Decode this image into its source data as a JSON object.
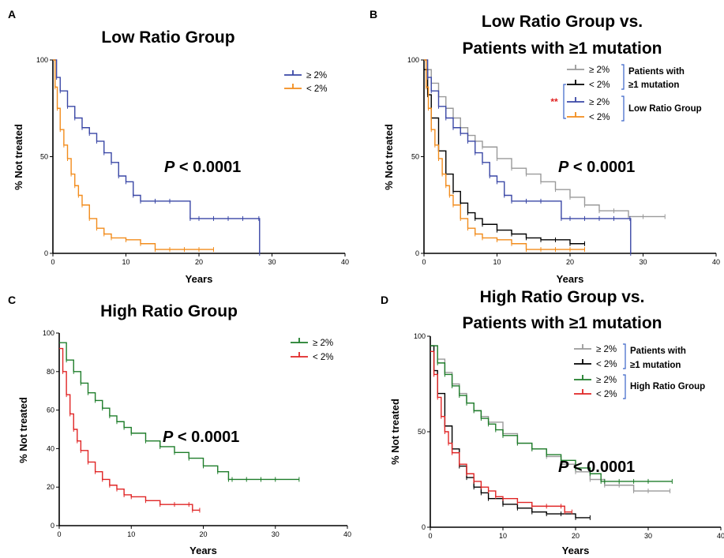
{
  "chart_data": [
    {
      "type": "line",
      "panel": "A",
      "title": [
        "Low Ratio Group"
      ],
      "xlabel": "Years",
      "ylabel": "% Not treated",
      "xlim": [
        0,
        40
      ],
      "ylim": [
        0,
        100
      ],
      "xticks": [
        0,
        10,
        20,
        30,
        40
      ],
      "yticks": [
        0,
        50,
        100
      ],
      "pvalue": {
        "prefix": "P",
        "text": " < 0.0001"
      },
      "legend": [
        {
          "label": "≥ 2%",
          "color": "#3a47a6"
        },
        {
          "label": "< 2%",
          "color": "#f28c1c"
        }
      ],
      "series": [
        {
          "name": "≥ 2%",
          "color": "#3a47a6",
          "x": [
            0,
            0.5,
            1,
            2,
            3,
            4,
            5,
            6,
            7,
            8,
            9,
            10,
            11,
            12,
            14,
            16,
            18.8,
            20,
            22,
            24,
            26,
            28.2,
            28.3
          ],
          "y": [
            100,
            91,
            84,
            76,
            70,
            65,
            62,
            58,
            52,
            47,
            40,
            37,
            30,
            27,
            27,
            27,
            18,
            18,
            18,
            18,
            18,
            18,
            0
          ]
        },
        {
          "name": "< 2%",
          "color": "#f28c1c",
          "x": [
            0,
            0.3,
            0.6,
            1,
            1.5,
            2,
            2.5,
            3,
            3.5,
            4,
            5,
            6,
            7,
            8,
            10,
            12,
            14,
            16,
            18,
            20,
            22
          ],
          "y": [
            100,
            86,
            75,
            64,
            56,
            49,
            41,
            35,
            30,
            25,
            18,
            13,
            10,
            8,
            7,
            5,
            2,
            2,
            2,
            2,
            2
          ]
        }
      ]
    },
    {
      "type": "line",
      "panel": "B",
      "title": [
        "Low Ratio Group vs.",
        "Patients with ≥1 mutation"
      ],
      "xlabel": "Years",
      "ylabel": "% Not treated",
      "xlim": [
        0,
        40
      ],
      "ylim": [
        0,
        100
      ],
      "xticks": [
        0,
        10,
        20,
        30,
        40
      ],
      "yticks": [
        0,
        50,
        100
      ],
      "pvalue": {
        "prefix": "P",
        "text": " < 0.0001"
      },
      "significance": "**",
      "legend": [
        {
          "label": "≥ 2%",
          "color": "#9a9a9a"
        },
        {
          "label": "< 2%",
          "color": "#000000"
        },
        {
          "label": "≥ 2%",
          "color": "#3a47a6"
        },
        {
          "label": "< 2%",
          "color": "#f28c1c"
        }
      ],
      "legend_groups": [
        {
          "lines": [
            "Patients with",
            "≥1 mutation"
          ]
        },
        {
          "lines": [
            "Low Ratio Group"
          ]
        }
      ],
      "series": [
        {
          "name": "≥ 2%",
          "color": "#9a9a9a",
          "x": [
            0,
            1,
            2,
            3,
            4,
            5,
            6,
            7,
            8,
            10,
            12,
            14,
            16,
            18,
            20,
            22,
            24,
            26,
            28,
            30,
            33
          ],
          "y": [
            95,
            88,
            81,
            75,
            70,
            65,
            61,
            58,
            55,
            49,
            44,
            41,
            37,
            33,
            29,
            25,
            22,
            22,
            19,
            19,
            19
          ]
        },
        {
          "name": "< 2%",
          "color": "#000000",
          "x": [
            0,
            0.5,
            1,
            2,
            3,
            4,
            5,
            6,
            7,
            8,
            10,
            12,
            14,
            16,
            18,
            20,
            22
          ],
          "y": [
            95,
            82,
            70,
            53,
            41,
            32,
            26,
            21,
            18,
            15,
            12,
            10,
            8,
            7,
            7,
            5,
            5
          ]
        },
        {
          "name": "≥ 2%",
          "color": "#3a47a6",
          "x": [
            0,
            0.5,
            1,
            2,
            3,
            4,
            5,
            6,
            7,
            8,
            9,
            10,
            11,
            12,
            14,
            16,
            18.8,
            20,
            22,
            24,
            26,
            28.2,
            28.3
          ],
          "y": [
            100,
            91,
            84,
            76,
            70,
            65,
            62,
            58,
            52,
            47,
            40,
            37,
            30,
            27,
            27,
            27,
            18,
            18,
            18,
            18,
            18,
            18,
            0
          ]
        },
        {
          "name": "< 2%",
          "color": "#f28c1c",
          "x": [
            0,
            0.3,
            0.6,
            1,
            1.5,
            2,
            2.5,
            3,
            3.5,
            4,
            5,
            6,
            7,
            8,
            10,
            12,
            14,
            16,
            18,
            20,
            22
          ],
          "y": [
            100,
            86,
            75,
            64,
            56,
            49,
            41,
            35,
            30,
            25,
            18,
            13,
            10,
            8,
            7,
            5,
            2,
            2,
            2,
            2,
            2
          ]
        }
      ]
    },
    {
      "type": "line",
      "panel": "C",
      "title": [
        "High Ratio Group"
      ],
      "xlabel": "Years",
      "ylabel": "% Not treated",
      "xlim": [
        0,
        40
      ],
      "ylim": [
        0,
        100
      ],
      "xticks": [
        0,
        10,
        20,
        30,
        40
      ],
      "yticks": [
        0,
        20,
        40,
        60,
        80,
        100
      ],
      "pvalue": {
        "prefix": "P",
        "text": " < 0.0001"
      },
      "legend": [
        {
          "label": "≥ 2%",
          "color": "#1e7d2a"
        },
        {
          "label": "< 2%",
          "color": "#e02525"
        }
      ],
      "series": [
        {
          "name": "≥ 2%",
          "color": "#1e7d2a",
          "x": [
            0,
            1,
            2,
            3,
            4,
            5,
            6,
            7,
            8,
            9,
            10,
            12,
            14,
            16,
            18,
            20,
            22,
            23.5,
            24,
            26,
            28,
            30,
            33.3
          ],
          "y": [
            95,
            86,
            80,
            74,
            69,
            65,
            61,
            57,
            54,
            51,
            48,
            44,
            41,
            38,
            35,
            31,
            28,
            24,
            24,
            24,
            24,
            24,
            24
          ]
        },
        {
          "name": "< 2%",
          "color": "#e02525",
          "x": [
            0,
            0.5,
            1,
            1.5,
            2,
            2.5,
            3,
            4,
            5,
            6,
            7,
            8,
            9,
            10,
            12,
            14,
            16,
            18,
            18.5,
            19.5
          ],
          "y": [
            92,
            80,
            68,
            58,
            50,
            44,
            39,
            33,
            28,
            24,
            21,
            19,
            16,
            15,
            13,
            11,
            11,
            11,
            8,
            8
          ]
        }
      ]
    },
    {
      "type": "line",
      "panel": "D",
      "title": [
        "High Ratio Group vs.",
        "Patients with ≥1 mutation"
      ],
      "xlabel": "Years",
      "ylabel": "% Not treated",
      "xlim": [
        0,
        40
      ],
      "ylim": [
        0,
        100
      ],
      "xticks": [
        0,
        10,
        20,
        30,
        40
      ],
      "yticks": [
        0,
        50,
        100
      ],
      "pvalue": {
        "prefix": "P",
        "text": " < 0.0001"
      },
      "legend": [
        {
          "label": "≥ 2%",
          "color": "#9a9a9a"
        },
        {
          "label": "< 2%",
          "color": "#000000"
        },
        {
          "label": "≥ 2%",
          "color": "#1e7d2a"
        },
        {
          "label": "< 2%",
          "color": "#e02525"
        }
      ],
      "legend_groups": [
        {
          "lines": [
            "Patients with",
            "≥1 mutation"
          ]
        },
        {
          "lines": [
            "High Ratio Group"
          ]
        }
      ],
      "series": [
        {
          "name": "≥ 2%",
          "color": "#9a9a9a",
          "x": [
            0,
            1,
            2,
            3,
            4,
            5,
            6,
            7,
            8,
            10,
            12,
            14,
            16,
            18,
            20,
            22,
            24,
            26,
            28,
            30,
            33
          ],
          "y": [
            95,
            88,
            81,
            75,
            70,
            65,
            61,
            58,
            55,
            49,
            44,
            41,
            37,
            33,
            29,
            25,
            22,
            22,
            19,
            19,
            19
          ]
        },
        {
          "name": "< 2%",
          "color": "#000000",
          "x": [
            0,
            0.5,
            1,
            2,
            3,
            4,
            5,
            6,
            7,
            8,
            10,
            12,
            14,
            16,
            18,
            20,
            22
          ],
          "y": [
            95,
            82,
            70,
            53,
            41,
            32,
            26,
            21,
            18,
            15,
            12,
            10,
            8,
            7,
            7,
            5,
            5
          ]
        },
        {
          "name": "≥ 2%",
          "color": "#1e7d2a",
          "x": [
            0,
            1,
            2,
            3,
            4,
            5,
            6,
            7,
            8,
            9,
            10,
            12,
            14,
            16,
            18,
            20,
            22,
            23.5,
            24,
            26,
            28,
            30,
            33.3
          ],
          "y": [
            95,
            86,
            80,
            74,
            69,
            65,
            61,
            57,
            54,
            51,
            48,
            44,
            41,
            38,
            35,
            31,
            28,
            24,
            24,
            24,
            24,
            24,
            24
          ]
        },
        {
          "name": "< 2%",
          "color": "#e02525",
          "x": [
            0,
            0.5,
            1,
            1.5,
            2,
            2.5,
            3,
            4,
            5,
            6,
            7,
            8,
            9,
            10,
            12,
            14,
            16,
            18,
            18.5,
            19.5
          ],
          "y": [
            92,
            80,
            68,
            58,
            50,
            44,
            39,
            33,
            28,
            24,
            21,
            19,
            16,
            15,
            13,
            11,
            11,
            11,
            8,
            8
          ]
        }
      ]
    }
  ]
}
